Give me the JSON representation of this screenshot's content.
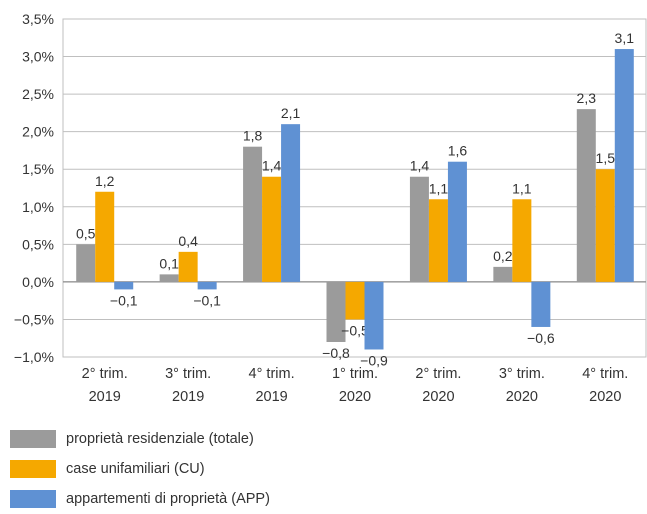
{
  "chart_data": {
    "type": "bar",
    "categories": [
      [
        "2° trim.",
        "2019"
      ],
      [
        "3° trim.",
        "2019"
      ],
      [
        "4° trim.",
        "2019"
      ],
      [
        "1° trim.",
        "2020"
      ],
      [
        "2° trim.",
        "2020"
      ],
      [
        "3° trim.",
        "2020"
      ],
      [
        "4° trim.",
        "2020"
      ]
    ],
    "series": [
      {
        "name": "proprietà residenziale (totale)",
        "color": "#9b9b9b",
        "values": [
          0.5,
          0.1,
          1.8,
          -0.8,
          1.4,
          0.2,
          2.3
        ],
        "labels": [
          "0,5",
          "0,1",
          "1,8",
          "−0,8",
          "1,4",
          "0,2",
          "2,3"
        ]
      },
      {
        "name": "case unifamiliari (CU)",
        "color": "#f5a800",
        "values": [
          1.2,
          0.4,
          1.4,
          -0.5,
          1.1,
          1.1,
          1.5
        ],
        "labels": [
          "1,2",
          "0,4",
          "1,4",
          "−0,5",
          "1,1",
          "1,1",
          "1,5"
        ]
      },
      {
        "name": "appartementi di proprietà (APP)",
        "color": "#5f91d3",
        "values": [
          -0.1,
          -0.1,
          2.1,
          -0.9,
          1.6,
          -0.6,
          3.1
        ],
        "labels": [
          "−0,1",
          "−0,1",
          "2,1",
          "−0,9",
          "1,6",
          "−0,6",
          "3,1"
        ]
      }
    ],
    "yticks": [
      -1.0,
      -0.5,
      0.0,
      0.5,
      1.0,
      1.5,
      2.0,
      2.5,
      3.0,
      3.5
    ],
    "ytick_labels": [
      "−1,0%",
      "−0,5%",
      "0,0%",
      "0,5%",
      "1,0%",
      "1,5%",
      "2,0%",
      "2,5%",
      "3,0%",
      "3,5%"
    ],
    "ylim": [
      -1.0,
      3.5
    ],
    "grid": true,
    "legend_position": "bottom-left",
    "title": "",
    "xlabel": "",
    "ylabel": ""
  }
}
